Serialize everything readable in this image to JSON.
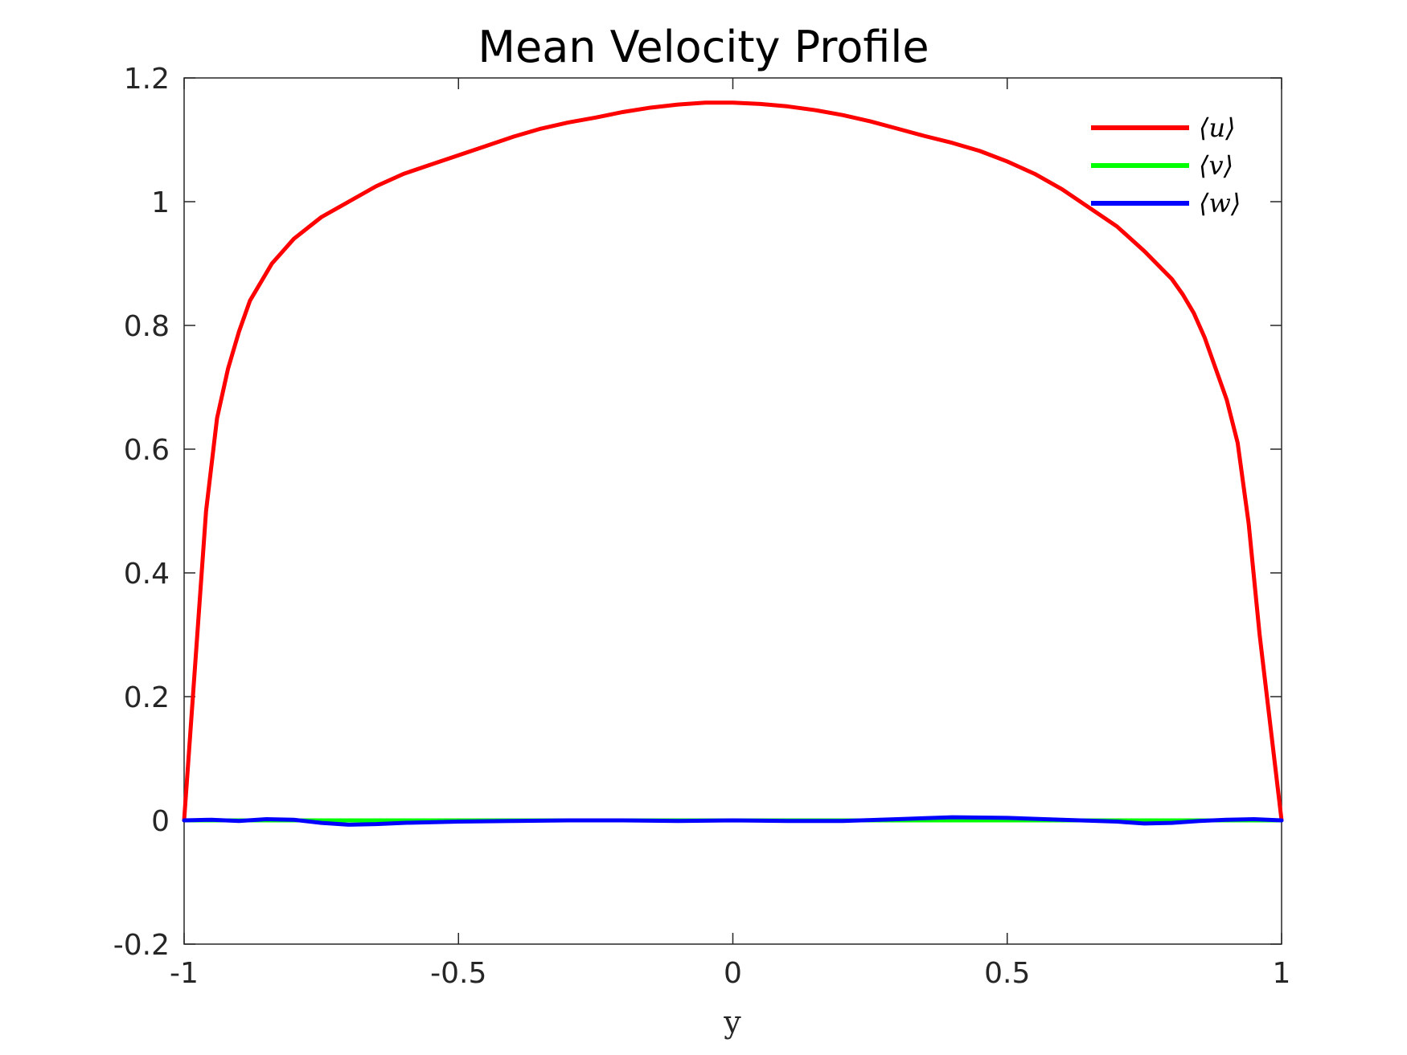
{
  "chart_data": {
    "type": "line",
    "title": "Mean Velocity Profile",
    "xlabel": "y",
    "ylabel": "",
    "xlim": [
      -1,
      1
    ],
    "ylim": [
      -0.2,
      1.2
    ],
    "xticks": [
      -1,
      -0.5,
      0,
      0.5,
      1
    ],
    "xtick_labels": [
      "-1",
      "-0.5",
      "0",
      "0.5",
      "1"
    ],
    "yticks": [
      -0.2,
      0,
      0.2,
      0.4,
      0.6,
      0.8,
      1,
      1.2
    ],
    "ytick_labels": [
      "-0.2",
      "0",
      "0.2",
      "0.4",
      "0.6",
      "0.8",
      "1",
      "1.2"
    ],
    "grid": false,
    "legend_position": "top-right",
    "series": [
      {
        "name": "⟨u⟩",
        "color": "#ff0000",
        "x": [
          -1,
          -0.98,
          -0.96,
          -0.94,
          -0.92,
          -0.9,
          -0.88,
          -0.86,
          -0.84,
          -0.82,
          -0.8,
          -0.75,
          -0.7,
          -0.65,
          -0.6,
          -0.55,
          -0.5,
          -0.45,
          -0.4,
          -0.35,
          -0.3,
          -0.25,
          -0.2,
          -0.15,
          -0.1,
          -0.05,
          0,
          0.05,
          0.1,
          0.15,
          0.2,
          0.25,
          0.3,
          0.35,
          0.4,
          0.45,
          0.5,
          0.55,
          0.6,
          0.65,
          0.7,
          0.75,
          0.8,
          0.82,
          0.84,
          0.86,
          0.88,
          0.9,
          0.92,
          0.94,
          0.96,
          0.98,
          1
        ],
        "y": [
          0,
          0.25,
          0.5,
          0.65,
          0.73,
          0.79,
          0.84,
          0.87,
          0.9,
          0.92,
          0.94,
          0.975,
          1.0,
          1.025,
          1.045,
          1.06,
          1.075,
          1.09,
          1.105,
          1.118,
          1.128,
          1.136,
          1.145,
          1.152,
          1.157,
          1.16,
          1.16,
          1.158,
          1.154,
          1.148,
          1.14,
          1.13,
          1.118,
          1.106,
          1.095,
          1.082,
          1.065,
          1.045,
          1.02,
          0.99,
          0.96,
          0.92,
          0.875,
          0.85,
          0.82,
          0.78,
          0.73,
          0.68,
          0.61,
          0.48,
          0.3,
          0.15,
          0
        ]
      },
      {
        "name": "⟨v⟩",
        "color": "#00ff00",
        "x": [
          -1,
          -0.5,
          0,
          0.5,
          1
        ],
        "y": [
          0,
          0,
          0,
          0,
          0
        ]
      },
      {
        "name": "⟨w⟩",
        "color": "#0000ff",
        "x": [
          -1,
          -0.95,
          -0.9,
          -0.85,
          -0.8,
          -0.75,
          -0.7,
          -0.65,
          -0.6,
          -0.5,
          -0.4,
          -0.3,
          -0.2,
          -0.1,
          0,
          0.1,
          0.2,
          0.3,
          0.4,
          0.5,
          0.6,
          0.7,
          0.75,
          0.8,
          0.85,
          0.9,
          0.95,
          1
        ],
        "y": [
          0,
          0.001,
          -0.001,
          0.002,
          0.001,
          -0.004,
          -0.007,
          -0.006,
          -0.004,
          -0.002,
          -0.001,
          0.0,
          0.0,
          -0.001,
          0.0,
          -0.001,
          -0.001,
          0.002,
          0.005,
          0.004,
          0.001,
          -0.002,
          -0.005,
          -0.004,
          -0.001,
          0.001,
          0.002,
          0
        ]
      }
    ]
  }
}
